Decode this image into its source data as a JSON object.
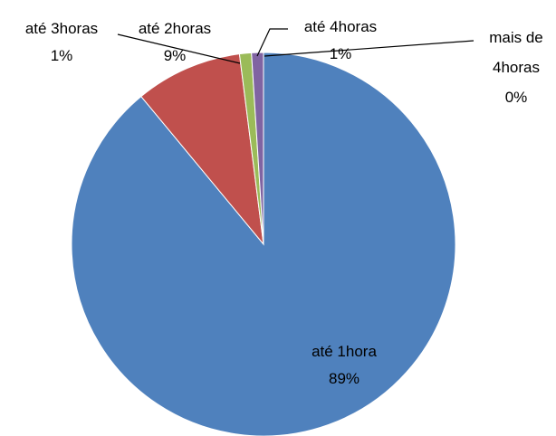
{
  "chart_data": {
    "type": "pie",
    "categories": [
      "até 1hora",
      "até 2horas",
      "até 3horas",
      "até 4horas",
      "mais de 4horas"
    ],
    "values": [
      89,
      9,
      1,
      1,
      0
    ],
    "value_labels": [
      "89%",
      "9%",
      "1%",
      "1%",
      "0%"
    ],
    "colors": [
      "#4f81bd",
      "#c0504d",
      "#9bbb59",
      "#8064a2",
      "#4bacc6"
    ]
  }
}
